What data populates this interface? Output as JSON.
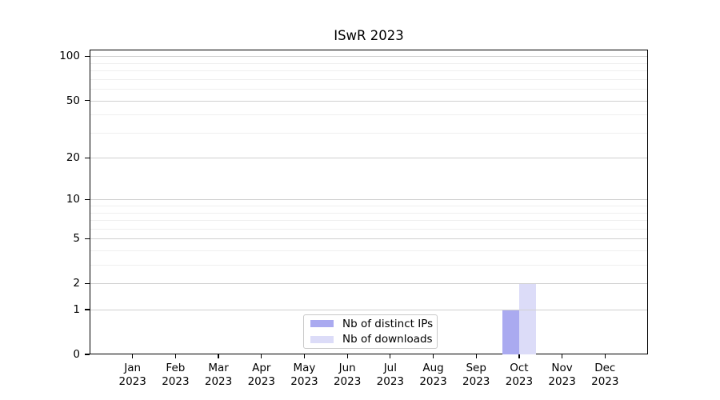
{
  "chart_data": {
    "type": "bar",
    "title": "ISwR 2023",
    "xlabel": "",
    "ylabel": "",
    "yscale": "log1p",
    "ylim": [
      0,
      111
    ],
    "yticks": [
      0,
      1,
      2,
      5,
      10,
      20,
      50,
      100
    ],
    "major_gridlines": [
      1,
      2,
      5,
      10,
      20,
      50,
      100
    ],
    "minor_gridlines": [
      3,
      4,
      6,
      7,
      8,
      9,
      30,
      40,
      60,
      70,
      80,
      90
    ],
    "grid": true,
    "categories": [
      {
        "line1": "Jan",
        "line2": "2023"
      },
      {
        "line1": "Feb",
        "line2": "2023"
      },
      {
        "line1": "Mar",
        "line2": "2023"
      },
      {
        "line1": "Apr",
        "line2": "2023"
      },
      {
        "line1": "May",
        "line2": "2023"
      },
      {
        "line1": "Jun",
        "line2": "2023"
      },
      {
        "line1": "Jul",
        "line2": "2023"
      },
      {
        "line1": "Aug",
        "line2": "2023"
      },
      {
        "line1": "Sep",
        "line2": "2023"
      },
      {
        "line1": "Oct",
        "line2": "2023"
      },
      {
        "line1": "Nov",
        "line2": "2023"
      },
      {
        "line1": "Dec",
        "line2": "2023"
      }
    ],
    "series": [
      {
        "name": "Nb of distinct IPs",
        "color": "#aaaaf0",
        "values": [
          0,
          0,
          0,
          0,
          0,
          0,
          0,
          0,
          0,
          1,
          0,
          0
        ]
      },
      {
        "name": "Nb of downloads",
        "color": "#dcdcf8",
        "values": [
          0,
          0,
          0,
          0,
          0,
          0,
          0,
          0,
          0,
          2,
          0,
          0
        ]
      }
    ],
    "legend": {
      "position": "bottom-center-inside"
    },
    "colors": {
      "major_grid": "#d0d0d0",
      "minor_grid": "#efefef",
      "spine": "#000000",
      "legend_border": "#c9c9c9"
    }
  }
}
